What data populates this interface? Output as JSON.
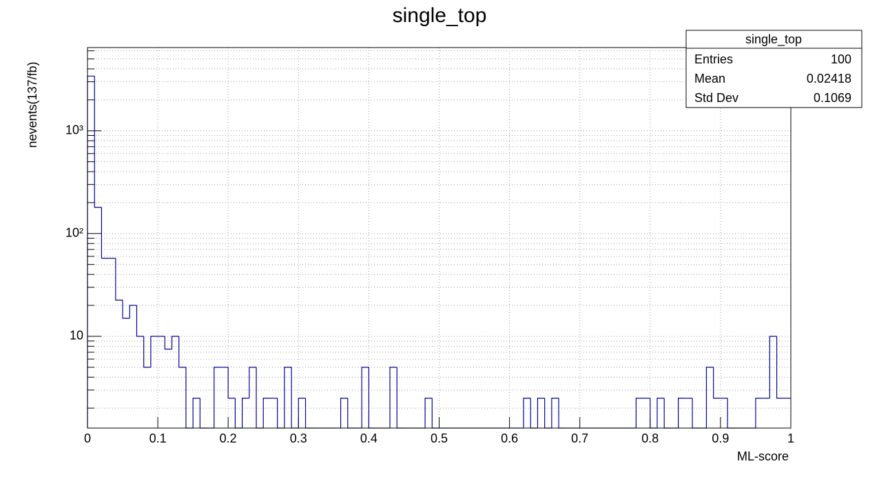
{
  "chart_data": {
    "type": "histogram",
    "title": "single_top",
    "x_label": "ML-score",
    "y_label": "nevents(137/fb)",
    "color": "#000099",
    "log_y": true,
    "grid": true,
    "bins": [
      0,
      0.01,
      0.02,
      0.03,
      0.04,
      0.05,
      0.06,
      0.07,
      0.08,
      0.09,
      0.1,
      0.11,
      0.12,
      0.13,
      0.14,
      0.15,
      0.16,
      0.17,
      0.18,
      0.19,
      0.2,
      0.21,
      0.22,
      0.23,
      0.24,
      0.25,
      0.26,
      0.27,
      0.28,
      0.29,
      0.3,
      0.31,
      0.32,
      0.33,
      0.34,
      0.35,
      0.36,
      0.37,
      0.38,
      0.39,
      0.4,
      0.41,
      0.42,
      0.43,
      0.44,
      0.45,
      0.46,
      0.47,
      0.48,
      0.49,
      0.5,
      0.51,
      0.52,
      0.53,
      0.54,
      0.55,
      0.56,
      0.57,
      0.58,
      0.59,
      0.6,
      0.61,
      0.62,
      0.63,
      0.64,
      0.65,
      0.66,
      0.67,
      0.68,
      0.69,
      0.7,
      0.71,
      0.72,
      0.73,
      0.74,
      0.75,
      0.76,
      0.77,
      0.78,
      0.79,
      0.8,
      0.81,
      0.82,
      0.83,
      0.84,
      0.85,
      0.86,
      0.87,
      0.88,
      0.89,
      0.9,
      0.91,
      0.92,
      0.93,
      0.94,
      0.95,
      0.96,
      0.97,
      0.98,
      0.99,
      1
    ],
    "values": [
      3400,
      180,
      57.5,
      57.5,
      22.5,
      15,
      20,
      10,
      5,
      10,
      10,
      7.5,
      10,
      5,
      0,
      2.5,
      0,
      0,
      5,
      5,
      2.5,
      0,
      2.5,
      5,
      0,
      2.5,
      2.5,
      0,
      5,
      0,
      2.5,
      0,
      0,
      0,
      0,
      0,
      2.5,
      0,
      0,
      5,
      0,
      0,
      0,
      5,
      0,
      0,
      0,
      0,
      2.5,
      0,
      0,
      0,
      0,
      0,
      0,
      0,
      0,
      0,
      0,
      0,
      0,
      0,
      2.5,
      0,
      2.5,
      0,
      2.5,
      0,
      0,
      0,
      0,
      0,
      0,
      0,
      0,
      0,
      0,
      0,
      2.5,
      2.5,
      0,
      2.5,
      0,
      0,
      2.5,
      2.5,
      0,
      0,
      5,
      2.5,
      2.5,
      0,
      0,
      0,
      0,
      2.5,
      2.5,
      10,
      2.5,
      2.5
    ],
    "xlim": [
      0,
      1
    ],
    "xticks": [
      0,
      0.1,
      0.2,
      0.3,
      0.4,
      0.5,
      0.6,
      0.7,
      0.8,
      0.9,
      1
    ],
    "ylim": [
      1.28,
      6450
    ],
    "yticks": [
      10,
      {
        "value": 100,
        "label": "10²"
      },
      {
        "value": 1000,
        "label": "10³"
      }
    ],
    "y_minor_ticks": [
      2,
      3,
      4,
      5,
      6,
      7,
      8,
      9,
      20,
      30,
      40,
      50,
      60,
      70,
      80,
      90,
      200,
      300,
      400,
      500,
      600,
      700,
      800,
      900,
      2000,
      3000,
      4000,
      5000,
      6000
    ],
    "stats_box": {
      "title": "single_top",
      "rows": [
        [
          "Entries",
          100
        ],
        [
          "Mean",
          0.02418
        ],
        [
          "Std Dev",
          0.1069
        ]
      ]
    }
  }
}
